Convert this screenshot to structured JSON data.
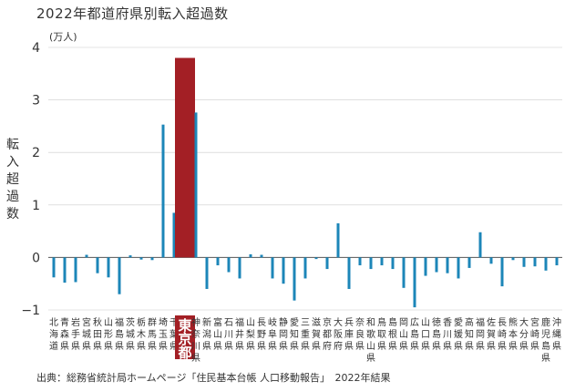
{
  "chart_data": {
    "type": "bar",
    "title": "2022年都道府県別転入超過数",
    "unit_label": "(万人)",
    "ylabel": "転入超過数",
    "ylim": [
      -1,
      4
    ],
    "yticks": [
      "−1",
      "0",
      "1",
      "2",
      "3",
      "4"
    ],
    "highlight_category": "東京都",
    "colors": {
      "bar": "#1c86b8",
      "highlight": "#a31f25",
      "axis": "#555555",
      "grid": "#cccccc"
    },
    "categories": [
      "北海道",
      "青森県",
      "岩手県",
      "宮城県",
      "秋田県",
      "山形県",
      "福島県",
      "茨城県",
      "栃木県",
      "群馬県",
      "埼玉県",
      "千葉県",
      "東京都",
      "神奈川県",
      "新潟県",
      "富山県",
      "石川県",
      "福井県",
      "山梨県",
      "長野県",
      "岐阜県",
      "静岡県",
      "愛知県",
      "三重県",
      "滋賀県",
      "京都府",
      "大阪府",
      "兵庫県",
      "奈良県",
      "和歌山県",
      "鳥取県",
      "島根県",
      "岡山県",
      "広島県",
      "山口県",
      "徳島県",
      "香川県",
      "愛媛県",
      "高知県",
      "福岡県",
      "佐賀県",
      "長崎県",
      "熊本県",
      "大分県",
      "宮崎県",
      "鹿児島県",
      "沖縄県"
    ],
    "tick_labels": [
      [
        "北",
        "海",
        "道"
      ],
      [
        "青",
        "森",
        "県"
      ],
      [
        "岩",
        "手",
        "県"
      ],
      [
        "宮",
        "城",
        "県"
      ],
      [
        "秋",
        "田",
        "県"
      ],
      [
        "山",
        "形",
        "県"
      ],
      [
        "福",
        "島",
        "県"
      ],
      [
        "茨",
        "城",
        "県"
      ],
      [
        "栃",
        "木",
        "県"
      ],
      [
        "群",
        "馬",
        "県"
      ],
      [
        "埼",
        "玉",
        "県"
      ],
      [
        "千",
        "葉",
        "県"
      ],
      [
        "東",
        "京",
        "都"
      ],
      [
        "神",
        "奈",
        "川",
        "県"
      ],
      [
        "新",
        "潟",
        "県"
      ],
      [
        "富",
        "山",
        "県"
      ],
      [
        "石",
        "川",
        "県"
      ],
      [
        "福",
        "井",
        "県"
      ],
      [
        "山",
        "梨",
        "県"
      ],
      [
        "長",
        "野",
        "県"
      ],
      [
        "岐",
        "阜",
        "県"
      ],
      [
        "静",
        "岡",
        "県"
      ],
      [
        "愛",
        "知",
        "県"
      ],
      [
        "三",
        "重",
        "県"
      ],
      [
        "滋",
        "賀",
        "県"
      ],
      [
        "京",
        "都",
        "府"
      ],
      [
        "大",
        "阪",
        "府"
      ],
      [
        "兵",
        "庫",
        "県"
      ],
      [
        "奈",
        "良",
        "県"
      ],
      [
        "和",
        "歌",
        "山",
        "県"
      ],
      [
        "鳥",
        "取",
        "県"
      ],
      [
        "島",
        "根",
        "県"
      ],
      [
        "岡",
        "山",
        "県"
      ],
      [
        "広",
        "島",
        "県"
      ],
      [
        "山",
        "口",
        "県"
      ],
      [
        "徳",
        "島",
        "県"
      ],
      [
        "香",
        "川",
        "県"
      ],
      [
        "愛",
        "媛",
        "県"
      ],
      [
        "高",
        "知",
        "県"
      ],
      [
        "福",
        "岡",
        "県"
      ],
      [
        "佐",
        "賀",
        "県"
      ],
      [
        "長",
        "崎",
        "県"
      ],
      [
        "熊",
        "本",
        "県"
      ],
      [
        "大",
        "分",
        "県"
      ],
      [
        "宮",
        "崎",
        "県"
      ],
      [
        "鹿",
        "児",
        "島",
        "県"
      ],
      [
        "沖",
        "縄",
        "県"
      ]
    ],
    "values": [
      -0.38,
      -0.48,
      -0.47,
      0.05,
      -0.3,
      -0.38,
      -0.7,
      0.04,
      -0.04,
      -0.05,
      2.53,
      0.85,
      3.8,
      2.76,
      -0.6,
      -0.15,
      -0.28,
      -0.4,
      0.06,
      0.05,
      -0.4,
      -0.5,
      -0.82,
      -0.4,
      -0.03,
      -0.22,
      0.65,
      -0.6,
      -0.15,
      -0.22,
      -0.15,
      -0.22,
      -0.58,
      -0.95,
      -0.35,
      -0.28,
      -0.3,
      -0.4,
      -0.2,
      0.48,
      -0.12,
      -0.55,
      -0.05,
      -0.18,
      -0.17,
      -0.25,
      -0.15
    ]
  },
  "source_text": "出典：総務省統計局ホームページ「住民基本台帳 人口移動報告」　2022年結果"
}
